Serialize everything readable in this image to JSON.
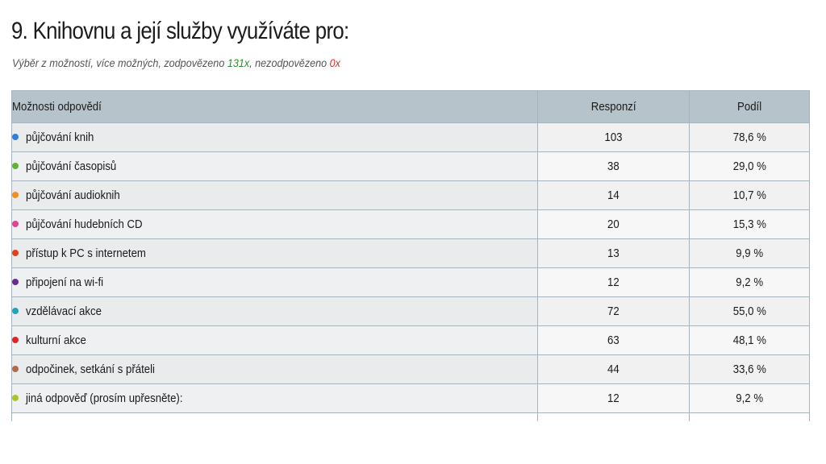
{
  "title": "9. Knihovnu a její služby využíváte pro:",
  "subtitle": {
    "prefix": "Výběr z možností, více možných, zodpovězeno ",
    "answered": "131x",
    "middle": ", nezodpovězeno ",
    "unanswered": "0x"
  },
  "table": {
    "headers": {
      "label": "Možnosti odpovědí",
      "responses": "Responzí",
      "share": "Podíl"
    },
    "rows": [
      {
        "label": "půjčování knih",
        "responses": "103",
        "share": "78,6 %",
        "color": "#2f7ed8"
      },
      {
        "label": "půjčování časopisů",
        "responses": "38",
        "share": "29,0 %",
        "color": "#62b233"
      },
      {
        "label": "půjčování audioknih",
        "responses": "14",
        "share": "10,7 %",
        "color": "#f28f1e"
      },
      {
        "label": "půjčování hudebních CD",
        "responses": "20",
        "share": "15,3 %",
        "color": "#e0458f"
      },
      {
        "label": "přístup k PC s internetem",
        "responses": "13",
        "share": "9,9 %",
        "color": "#e4401f"
      },
      {
        "label": "připojení na wi-fi",
        "responses": "12",
        "share": "9,2 %",
        "color": "#6a2d8f"
      },
      {
        "label": "vzdělávací akce",
        "responses": "72",
        "share": "55,0 %",
        "color": "#1ea5b8"
      },
      {
        "label": "kulturní akce",
        "responses": "63",
        "share": "48,1 %",
        "color": "#e02424"
      },
      {
        "label": "odpočinek, setkání s přáteli",
        "responses": "44",
        "share": "33,6 %",
        "color": "#b26b4a"
      },
      {
        "label": "jiná odpověď (prosím upřesněte):",
        "responses": "12",
        "share": "9,2 %",
        "color": "#a8c523"
      }
    ]
  }
}
